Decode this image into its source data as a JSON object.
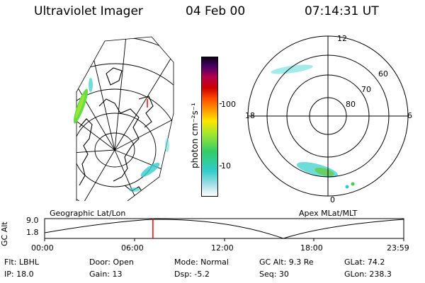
{
  "header": {
    "instrument": "Ultraviolet Imager",
    "date": "04 Feb 00",
    "time": "07:14:31 UT"
  },
  "colorbar": {
    "unit_label": "photon cm⁻²s⁻¹",
    "ticks": [
      "100",
      "10"
    ],
    "colors": [
      "#ffffff",
      "#a6e0e6",
      "#33cccc",
      "#33cc66",
      "#99e633",
      "#ffe600",
      "#ff9900",
      "#ff4d00",
      "#cc0000",
      "#b3004d",
      "#4d0066",
      "#0d0019"
    ]
  },
  "left_panel": {
    "caption": "Geographic Lat/Lon"
  },
  "right_panel": {
    "caption": "Apex MLat/MLT",
    "mlt_labels": {
      "top": "12",
      "left": "18",
      "right": "6",
      "bottom": "0"
    },
    "mlat_labels": [
      "60",
      "70",
      "80"
    ]
  },
  "altitude_plot": {
    "ylabel": "GC Alt",
    "y_ticks": [
      "9.0",
      "1.8"
    ],
    "x_ticks": [
      "00:00",
      "06:00",
      "12:00",
      "18:00",
      "23:59"
    ],
    "current_time_fraction": 0.3015,
    "marker_color": "#ff0000"
  },
  "status": {
    "row1": {
      "filter": "Flt: LBHL",
      "door": "Door: Open",
      "mode": "Mode: Normal",
      "gc_alt": "GC Alt: 9.3 Re",
      "glat": "GLat: 74.2"
    },
    "row2": {
      "ip": "IP: 18.0",
      "gain": "Gain: 13",
      "dsp": "Dsp:   -5.2",
      "seq": "Seq: 30",
      "glon": "GLon: 238.3"
    }
  }
}
